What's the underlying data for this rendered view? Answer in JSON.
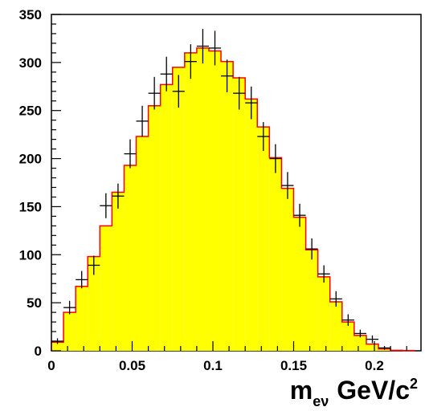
{
  "chart_data": {
    "type": "histogram",
    "xlabel_main": "m",
    "xlabel_sub": "eν",
    "xlabel_unit": "GeV/c",
    "xlabel_sup": "2",
    "xlim": [
      0,
      0.22
    ],
    "ylim": [
      0,
      350
    ],
    "x_ticks": [
      {
        "v": 0,
        "label": "0"
      },
      {
        "v": 0.05,
        "label": "0.05"
      },
      {
        "v": 0.1,
        "label": "0.1"
      },
      {
        "v": 0.15,
        "label": "0.15"
      },
      {
        "v": 0.2,
        "label": "0.2"
      }
    ],
    "y_ticks": [
      {
        "v": 0,
        "label": "0"
      },
      {
        "v": 50,
        "label": "50"
      },
      {
        "v": 100,
        "label": "100"
      },
      {
        "v": 150,
        "label": "150"
      },
      {
        "v": 200,
        "label": "200"
      },
      {
        "v": 250,
        "label": "250"
      },
      {
        "v": 300,
        "label": "300"
      },
      {
        "v": 350,
        "label": "350"
      }
    ],
    "bin_width": 0.0075,
    "histogram": {
      "fill_color": "#ffff00",
      "line_color": "#ff0000",
      "values": [
        9,
        40,
        67,
        98,
        130,
        165,
        193,
        223,
        255,
        277,
        295,
        310,
        315,
        312,
        301,
        284,
        262,
        233,
        201,
        169,
        139,
        105,
        77,
        51,
        30,
        16,
        7,
        2,
        0.5,
        0.3
      ]
    },
    "data_points": {
      "color": "#000000",
      "x": [
        0.00375,
        0.01125,
        0.01875,
        0.02625,
        0.03375,
        0.04125,
        0.04875,
        0.05625,
        0.06375,
        0.07125,
        0.07875,
        0.08625,
        0.09375,
        0.10125,
        0.10875,
        0.11625,
        0.12375,
        0.13125,
        0.13875,
        0.14625,
        0.15375,
        0.16125,
        0.16875,
        0.17625,
        0.18375,
        0.19125,
        0.19875,
        0.20625
      ],
      "y": [
        10,
        45,
        74,
        89,
        151,
        161,
        205,
        239,
        268,
        288,
        270,
        301,
        317,
        315,
        286,
        268,
        258,
        223,
        200,
        172,
        141,
        106,
        80,
        54,
        32,
        18,
        12,
        3
      ],
      "err": [
        3,
        7,
        9,
        10,
        13,
        13,
        15,
        16,
        17,
        18,
        17,
        18,
        18,
        18,
        17,
        17,
        17,
        15,
        15,
        14,
        12,
        11,
        9,
        8,
        6,
        4,
        4,
        2
      ]
    }
  }
}
